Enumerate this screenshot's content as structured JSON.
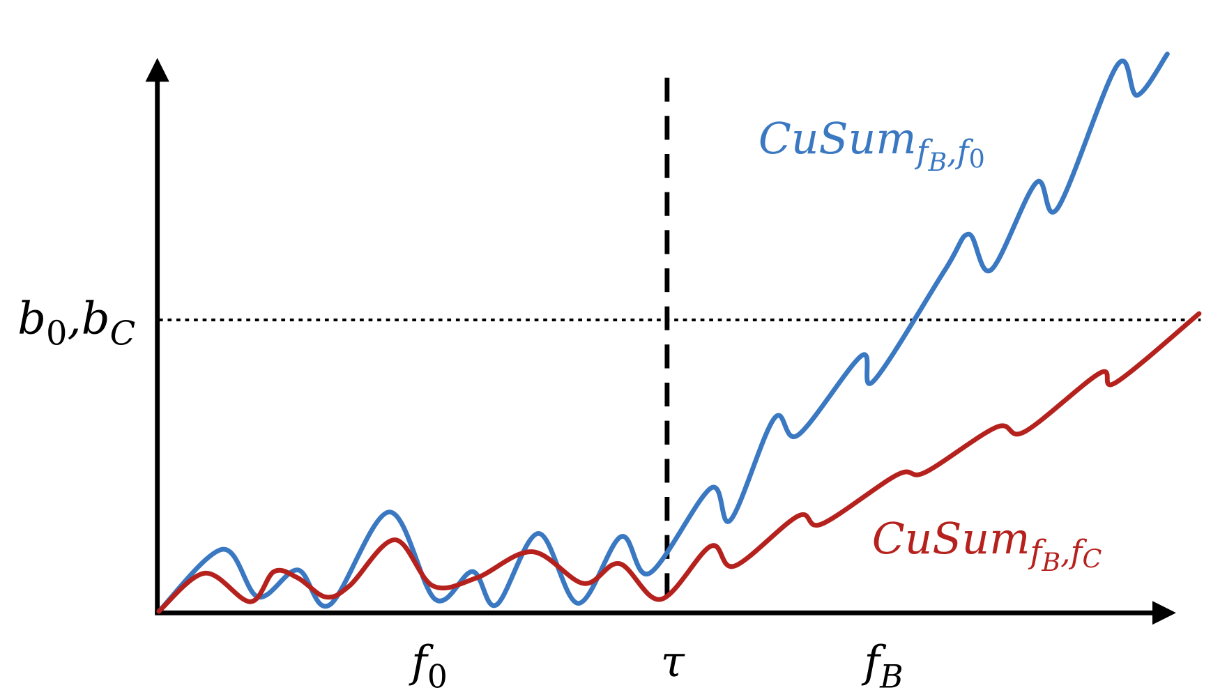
{
  "axes": {
    "threshold_label": {
      "base_1": "b",
      "sub_1": "0",
      "base_2": ",b",
      "sub_2": "C"
    },
    "x_labels": [
      {
        "base": "f",
        "sub": "0"
      },
      {
        "base": "τ"
      },
      {
        "base": "f",
        "sub": "B"
      }
    ]
  },
  "curves": [
    {
      "base": "CuSum",
      "sub_1": "f",
      "sub_1_sub": "B",
      "sub_2": ",f",
      "sub_2_sub": "0"
    },
    {
      "base": "CuSum",
      "sub_1": "f",
      "sub_1_sub": "B",
      "sub_2": ",f",
      "sub_2_sub": "C"
    }
  ]
}
